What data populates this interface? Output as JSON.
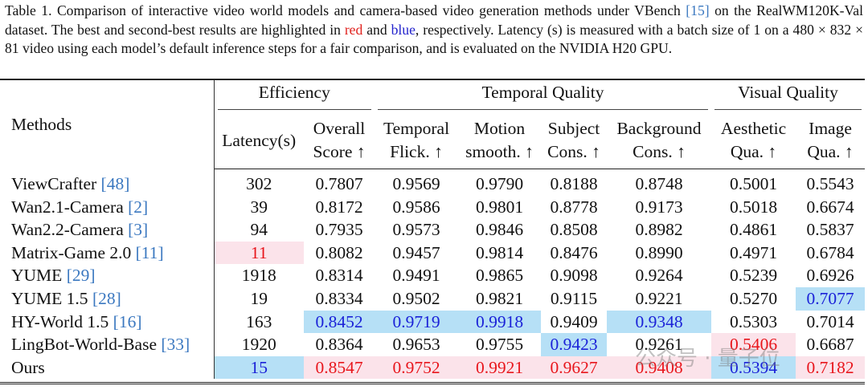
{
  "caption": {
    "part1": "Table 1.  Comparison of interactive video world models and camera-based video generation methods under VBench ",
    "cite": "[15]",
    "part2": " on the RealWM120K-Val dataset. The best and second-best results are highlighted in ",
    "red_word": "red",
    "part3": " and ",
    "blue_word": "blue",
    "part4": ", respectively. Latency (s) is measured with a batch size of 1 on a 480 × 832 × 81 video using each model’s default inference steps for a fair comparison, and is evaluated on the NVIDIA H20 GPU."
  },
  "header": {
    "methods": "Methods",
    "groups": [
      "Efficiency",
      "Temporal Quality",
      "Visual Quality"
    ],
    "columns": [
      {
        "line1": "Latency(s)",
        "line2": ""
      },
      {
        "line1": "Overall",
        "line2": "Score ↑"
      },
      {
        "line1": "Temporal",
        "line2": "Flick. ↑"
      },
      {
        "line1": "Motion",
        "line2": "smooth. ↑"
      },
      {
        "line1": "Subject",
        "line2": "Cons. ↑"
      },
      {
        "line1": "Background",
        "line2": "Cons. ↑"
      },
      {
        "line1": "Aesthetic",
        "line2": "Qua. ↑"
      },
      {
        "line1": "Image",
        "line2": "Qua. ↑"
      }
    ]
  },
  "colors": {
    "best_text": "#e8161c",
    "best_bg": "#fbe3ea",
    "second_text": "#1b22d8",
    "second_bg": "#b6e0f6"
  },
  "rows": [
    {
      "method": "ViewCrafter",
      "cite": "[48]",
      "values": [
        "302",
        "0.7807",
        "0.9569",
        "0.9790",
        "0.8188",
        "0.8748",
        "0.5001",
        "0.5543"
      ],
      "rank": [
        "",
        "",
        "",
        "",
        "",
        "",
        "",
        ""
      ]
    },
    {
      "method": "Wan2.1-Camera",
      "cite": "[2]",
      "values": [
        "39",
        "0.8172",
        "0.9586",
        "0.9801",
        "0.8778",
        "0.9173",
        "0.5018",
        "0.6674"
      ],
      "rank": [
        "",
        "",
        "",
        "",
        "",
        "",
        "",
        ""
      ]
    },
    {
      "method": "Wan2.2-Camera",
      "cite": "[3]",
      "values": [
        "94",
        "0.7935",
        "0.9573",
        "0.9846",
        "0.8508",
        "0.8982",
        "0.4861",
        "0.5837"
      ],
      "rank": [
        "",
        "",
        "",
        "",
        "",
        "",
        "",
        ""
      ]
    },
    {
      "method": "Matrix-Game 2.0",
      "cite": "[11]",
      "values": [
        "11",
        "0.8082",
        "0.9457",
        "0.9814",
        "0.8476",
        "0.8990",
        "0.4971",
        "0.6784"
      ],
      "rank": [
        "best",
        "",
        "",
        "",
        "",
        "",
        "",
        ""
      ]
    },
    {
      "method": "YUME",
      "cite": "[29]",
      "values": [
        "1918",
        "0.8314",
        "0.9491",
        "0.9865",
        "0.9098",
        "0.9264",
        "0.5239",
        "0.6926"
      ],
      "rank": [
        "",
        "",
        "",
        "",
        "",
        "",
        "",
        ""
      ]
    },
    {
      "method": "YUME 1.5",
      "cite": "[28]",
      "values": [
        "19",
        "0.8334",
        "0.9502",
        "0.9821",
        "0.9115",
        "0.9221",
        "0.5270",
        "0.7077"
      ],
      "rank": [
        "",
        "",
        "",
        "",
        "",
        "",
        "",
        "second"
      ]
    },
    {
      "method": "HY-World 1.5",
      "cite": "[16]",
      "values": [
        "163",
        "0.8452",
        "0.9719",
        "0.9918",
        "0.9409",
        "0.9348",
        "0.5303",
        "0.7014"
      ],
      "rank": [
        "",
        "second",
        "second",
        "second",
        "",
        "second",
        "",
        ""
      ]
    },
    {
      "method": "LingBot-World-Base",
      "cite": "[33]",
      "values": [
        "1920",
        "0.8364",
        "0.9653",
        "0.9755",
        "0.9423",
        "0.9261",
        "0.5406",
        "0.6687"
      ],
      "rank": [
        "",
        "",
        "",
        "",
        "second",
        "",
        "best",
        ""
      ]
    },
    {
      "method": "Ours",
      "cite": "",
      "values": [
        "15",
        "0.8547",
        "0.9752",
        "0.9921",
        "0.9627",
        "0.9408",
        "0.5394",
        "0.7182"
      ],
      "rank": [
        "second",
        "best",
        "best",
        "best",
        "best",
        "best",
        "second",
        "best"
      ]
    }
  ],
  "watermark": "公众号 · 量子位"
}
